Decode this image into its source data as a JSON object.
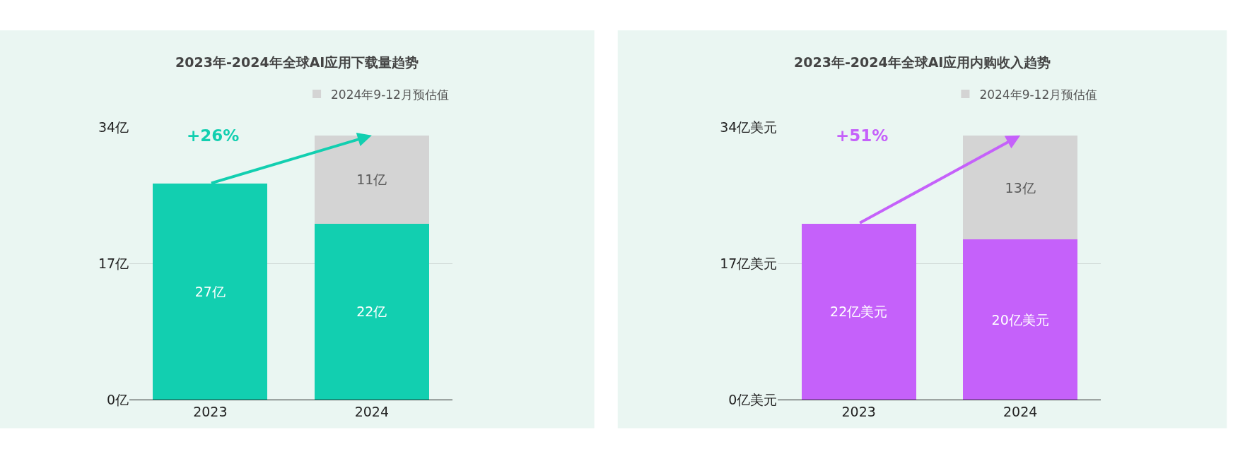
{
  "chart_data": [
    {
      "type": "bar",
      "title": "2023年-2024年全球AI应用下载量趋势",
      "categories": [
        "2023",
        "2024"
      ],
      "stacked": true,
      "legend": "top right",
      "grid": "y",
      "ylim": [
        0,
        34
      ],
      "yticks": [
        {
          "value": 0,
          "label": "0亿"
        },
        {
          "value": 17,
          "label": "17亿"
        },
        {
          "value": 34,
          "label": "34亿"
        }
      ],
      "series": [
        {
          "color": "#12cfb0",
          "values": [
            27,
            22
          ],
          "value_labels": [
            "27亿",
            "22亿"
          ]
        },
        {
          "name": "2024年9-12月预估值",
          "color": "#d4d4d4",
          "values": [
            null,
            11
          ],
          "value_labels": [
            null,
            "11亿"
          ]
        }
      ],
      "annotations": [
        "+26%"
      ]
    },
    {
      "type": "bar",
      "title": "2023年-2024年全球AI应用内购收入趋势",
      "categories": [
        "2023",
        "2024"
      ],
      "stacked": true,
      "legend": "top right",
      "grid": "y",
      "ylim": [
        0,
        34
      ],
      "yticks": [
        {
          "value": 0,
          "label": "0亿美元"
        },
        {
          "value": 17,
          "label": "17亿美元"
        },
        {
          "value": 34,
          "label": "34亿美元"
        }
      ],
      "series": [
        {
          "color": "#c561fa",
          "values": [
            22,
            20
          ],
          "value_labels": [
            "22亿美元",
            "20亿美元"
          ]
        },
        {
          "name": "2024年9-12月预估值",
          "color": "#d4d4d4",
          "values": [
            null,
            13
          ],
          "value_labels": [
            null,
            "13亿"
          ]
        }
      ],
      "annotations": [
        "+51%"
      ]
    }
  ]
}
